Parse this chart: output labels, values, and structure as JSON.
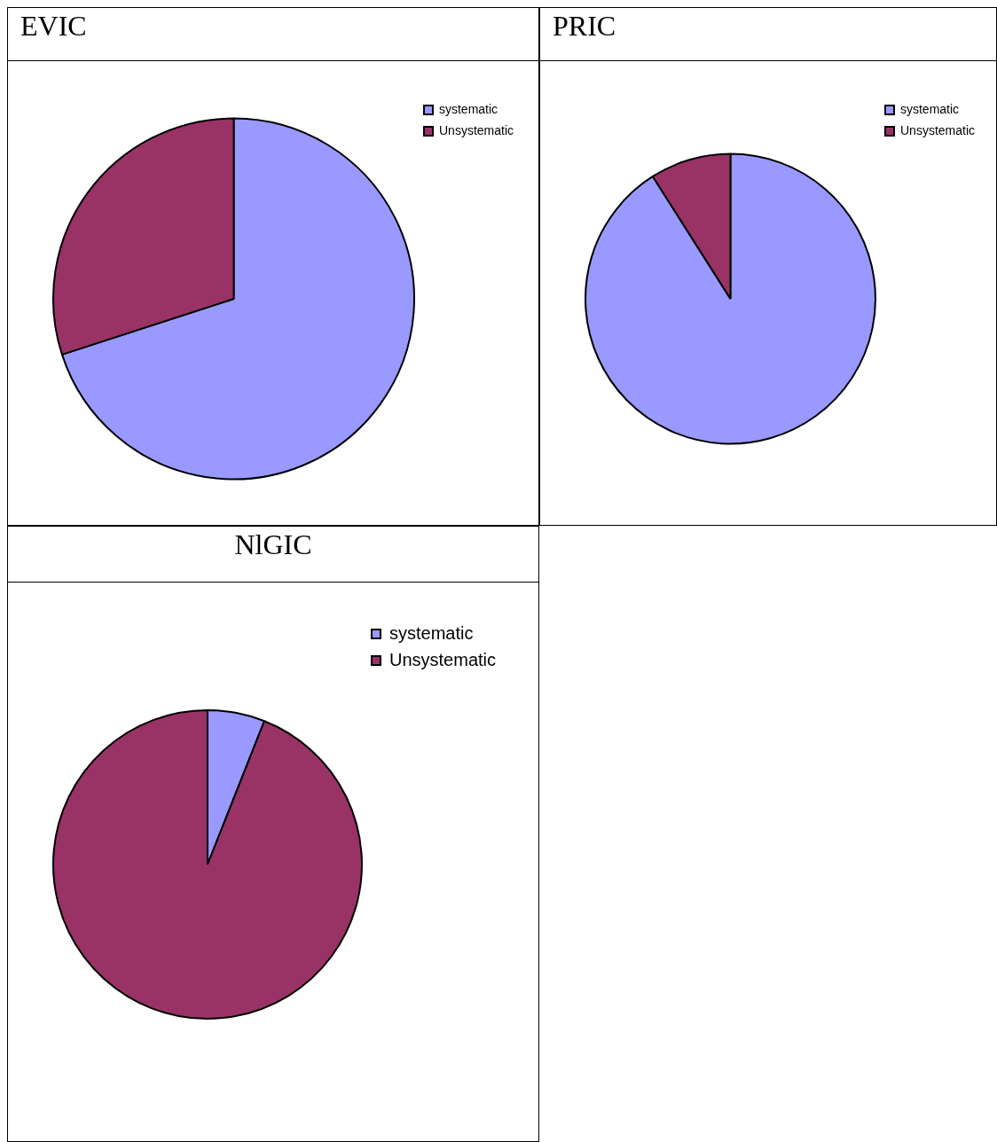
{
  "chart_data": [
    {
      "type": "pie",
      "title": "EVIC",
      "categories": [
        "systematic",
        "Unsystematic"
      ],
      "values": [
        70,
        30
      ],
      "colors": [
        "#9999ff",
        "#993366"
      ],
      "legend": "top right"
    },
    {
      "type": "pie",
      "title": "PRIC",
      "categories": [
        "systematic",
        "Unsystematic"
      ],
      "values": [
        91,
        9
      ],
      "colors": [
        "#9999ff",
        "#993366"
      ],
      "legend": "top right"
    },
    {
      "type": "pie",
      "title": "NlGIC",
      "categories": [
        "systematic",
        "Unsystematic"
      ],
      "values": [
        6,
        94
      ],
      "colors": [
        "#9999ff",
        "#993366"
      ],
      "legend": "top right"
    }
  ]
}
